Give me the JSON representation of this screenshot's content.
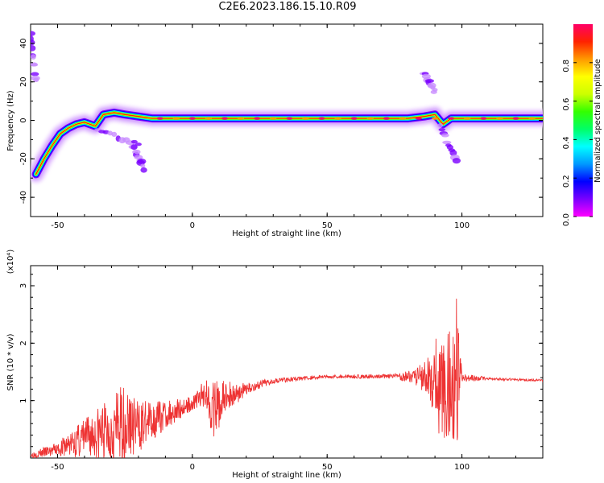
{
  "chart_data": [
    {
      "type": "heatmap",
      "title": "C2E6.2023.186.15.10.R09",
      "xlabel": "Height of straight line (km)",
      "ylabel": "Frequency (Hz)",
      "xlim": [
        -60,
        130
      ],
      "ylim": [
        -50,
        50
      ],
      "x_ticks": [
        -50,
        0,
        50,
        100
      ],
      "y_ticks": [
        -40,
        -20,
        0,
        20,
        40
      ],
      "colorbar": {
        "label": "Normalized spectral amplitude",
        "range": [
          0,
          1
        ],
        "ticks": [
          "0.0",
          "0.2",
          "0.4",
          "0.6",
          "0.8"
        ],
        "colormap": [
          "#ff00ff",
          "#7a00ff",
          "#0000ff",
          "#0099ff",
          "#00ffff",
          "#00ff66",
          "#33ff00",
          "#ccff00",
          "#ffff00",
          "#ff9900",
          "#ff2200",
          "#ff0066"
        ]
      },
      "ridge": [
        {
          "x": -58,
          "y": -28
        },
        {
          "x": -55,
          "y": -20
        },
        {
          "x": -52,
          "y": -13
        },
        {
          "x": -49,
          "y": -7
        },
        {
          "x": -46,
          "y": -4
        },
        {
          "x": -43,
          "y": -2
        },
        {
          "x": -40,
          "y": -1
        },
        {
          "x": -36,
          "y": -3
        },
        {
          "x": -33,
          "y": 3
        },
        {
          "x": -29,
          "y": 4
        },
        {
          "x": -25,
          "y": 3
        },
        {
          "x": -20,
          "y": 2
        },
        {
          "x": -15,
          "y": 1
        },
        {
          "x": -10,
          "y": 1
        },
        {
          "x": 0,
          "y": 1
        },
        {
          "x": 20,
          "y": 1
        },
        {
          "x": 40,
          "y": 1
        },
        {
          "x": 60,
          "y": 1
        },
        {
          "x": 80,
          "y": 1
        },
        {
          "x": 86,
          "y": 2
        },
        {
          "x": 90,
          "y": 3
        },
        {
          "x": 93,
          "y": -2
        },
        {
          "x": 96,
          "y": 1
        },
        {
          "x": 100,
          "y": 1
        },
        {
          "x": 110,
          "y": 1
        },
        {
          "x": 130,
          "y": 1
        }
      ],
      "spurs": [
        {
          "x": [
            -35,
            -20
          ],
          "y": [
            -5,
            -12
          ]
        },
        {
          "x": [
            -22,
            -18
          ],
          "y": [
            -13,
            -25
          ]
        },
        {
          "x": [
            86,
            90
          ],
          "y": [
            25,
            15
          ]
        },
        {
          "x": [
            92,
            98
          ],
          "y": [
            -3,
            -21
          ]
        },
        {
          "x": [
            -60,
            -58
          ],
          "y": [
            45,
            20
          ]
        }
      ]
    },
    {
      "type": "line",
      "xlabel": "Height of straight line (km)",
      "ylabel": "SNR (10 * v/v)",
      "y_multiplier": "(x10⁴)",
      "xlim": [
        -60,
        130
      ],
      "ylim": [
        0,
        3.35
      ],
      "x_ticks": [
        -50,
        0,
        50,
        100
      ],
      "y_ticks": [
        1,
        2,
        3
      ],
      "color": "#ee3333",
      "envelope": [
        {
          "x": -60,
          "mean": 0.05,
          "amp": 0.05
        },
        {
          "x": -50,
          "mean": 0.15,
          "amp": 0.12
        },
        {
          "x": -40,
          "mean": 0.35,
          "amp": 0.35
        },
        {
          "x": -30,
          "mean": 0.5,
          "amp": 0.6
        },
        {
          "x": -25,
          "mean": 0.6,
          "amp": 0.7
        },
        {
          "x": -20,
          "mean": 0.55,
          "amp": 0.45
        },
        {
          "x": -10,
          "mean": 0.75,
          "amp": 0.25
        },
        {
          "x": 0,
          "mean": 0.95,
          "amp": 0.12
        },
        {
          "x": 5,
          "mean": 1.15,
          "amp": 0.25
        },
        {
          "x": 8,
          "mean": 0.8,
          "amp": 0.55
        },
        {
          "x": 12,
          "mean": 1.05,
          "amp": 0.3
        },
        {
          "x": 20,
          "mean": 1.2,
          "amp": 0.1
        },
        {
          "x": 30,
          "mean": 1.35,
          "amp": 0.05
        },
        {
          "x": 50,
          "mean": 1.42,
          "amp": 0.03
        },
        {
          "x": 75,
          "mean": 1.42,
          "amp": 0.04
        },
        {
          "x": 82,
          "mean": 1.42,
          "amp": 0.12
        },
        {
          "x": 88,
          "mean": 1.42,
          "amp": 0.35
        },
        {
          "x": 92,
          "mean": 1.2,
          "amp": 1.1
        },
        {
          "x": 96,
          "mean": 1.3,
          "amp": 0.9
        },
        {
          "x": 98,
          "mean": 1.5,
          "amp": 1.5
        },
        {
          "x": 100,
          "mean": 1.4,
          "amp": 0.08
        },
        {
          "x": 110,
          "mean": 1.38,
          "amp": 0.02
        },
        {
          "x": 130,
          "mean": 1.35,
          "amp": 0.02
        }
      ]
    }
  ]
}
